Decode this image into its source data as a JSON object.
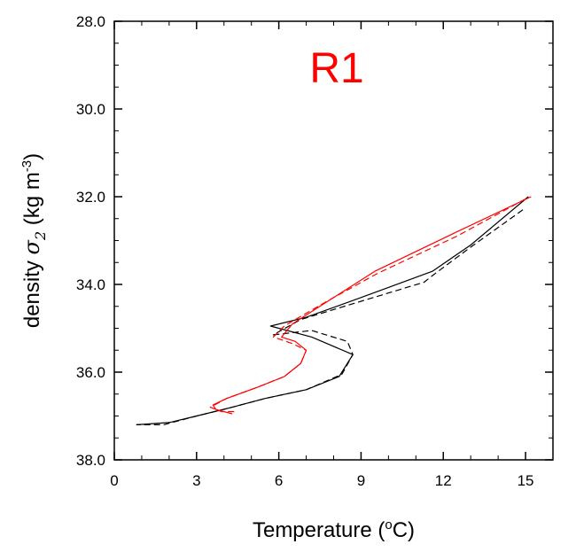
{
  "chart_data": {
    "type": "line",
    "title": "R1",
    "title_color": "#ff0000",
    "xlabel_prefix": "Temperature (",
    "xlabel_sup": "o",
    "xlabel_suffix": "C)",
    "ylabel_prefix": "density ",
    "ylabel_symbol": "σ",
    "ylabel_subscript": "2",
    "ylabel_unit": " (kg m",
    "ylabel_unit_sup": "-3",
    "ylabel_unit_close": ")",
    "xlim": [
      0,
      16
    ],
    "ylim": [
      28,
      38
    ],
    "y_inverted": true,
    "x_ticks": [
      0,
      3,
      6,
      9,
      12,
      15
    ],
    "x_tick_labels": [
      "0",
      "3",
      "6",
      "9",
      "12",
      "15"
    ],
    "y_ticks": [
      28,
      30,
      32,
      34,
      36,
      38
    ],
    "y_tick_labels": [
      "28.0",
      "30.0",
      "32.0",
      "34.0",
      "36.0",
      "38.0"
    ],
    "x_minor_step": 1,
    "y_minor_step": 0.5,
    "grid": false,
    "series": [
      {
        "color": "#000000",
        "dash": "solid",
        "points": [
          [
            15.1,
            32.0
          ],
          [
            13.0,
            33.1
          ],
          [
            11.6,
            33.7
          ],
          [
            9.0,
            34.3
          ],
          [
            7.0,
            34.75
          ],
          [
            5.7,
            34.95
          ],
          [
            7.2,
            35.2
          ],
          [
            8.7,
            35.6
          ],
          [
            8.2,
            36.1
          ],
          [
            7.0,
            36.4
          ],
          [
            5.5,
            36.6
          ],
          [
            4.3,
            36.8
          ],
          [
            3.0,
            37.0
          ],
          [
            2.0,
            37.15
          ],
          [
            0.8,
            37.2
          ]
        ]
      },
      {
        "color": "#000000",
        "dash": "dashed",
        "points": [
          [
            14.9,
            32.3
          ],
          [
            13.0,
            33.15
          ],
          [
            11.6,
            33.8
          ],
          [
            11.3,
            33.95
          ],
          [
            6.8,
            34.8
          ],
          [
            5.8,
            35.15
          ],
          [
            7.2,
            35.05
          ],
          [
            8.5,
            35.3
          ],
          [
            8.7,
            35.6
          ],
          [
            8.3,
            36.05
          ],
          [
            7.0,
            36.4
          ],
          [
            5.5,
            36.6
          ],
          [
            4.3,
            36.8
          ],
          [
            3.0,
            37.0
          ],
          [
            1.8,
            37.2
          ],
          [
            0.8,
            37.2
          ]
        ]
      },
      {
        "color": "#ff0000",
        "dash": "solid",
        "points": [
          [
            15.2,
            32.0
          ],
          [
            12.5,
            32.8
          ],
          [
            9.5,
            33.7
          ],
          [
            8.0,
            34.3
          ],
          [
            6.5,
            34.9
          ],
          [
            6.1,
            35.2
          ],
          [
            6.6,
            35.3
          ],
          [
            7.0,
            35.5
          ],
          [
            6.8,
            35.8
          ],
          [
            6.2,
            36.1
          ],
          [
            5.2,
            36.35
          ],
          [
            4.1,
            36.6
          ],
          [
            3.6,
            36.75
          ],
          [
            3.7,
            36.85
          ],
          [
            4.3,
            36.95
          ]
        ]
      },
      {
        "color": "#ff0000",
        "dash": "dashed",
        "points": [
          [
            15.0,
            32.05
          ],
          [
            12.5,
            32.9
          ],
          [
            9.6,
            33.75
          ],
          [
            8.0,
            34.3
          ],
          [
            6.6,
            34.8
          ],
          [
            6.2,
            34.95
          ],
          [
            5.8,
            35.2
          ],
          [
            6.5,
            35.35
          ],
          [
            7.0,
            35.5
          ],
          [
            6.8,
            35.8
          ],
          [
            6.2,
            36.1
          ],
          [
            5.2,
            36.35
          ],
          [
            4.1,
            36.6
          ],
          [
            3.5,
            36.8
          ],
          [
            3.9,
            36.9
          ],
          [
            4.4,
            36.9
          ]
        ]
      }
    ]
  }
}
